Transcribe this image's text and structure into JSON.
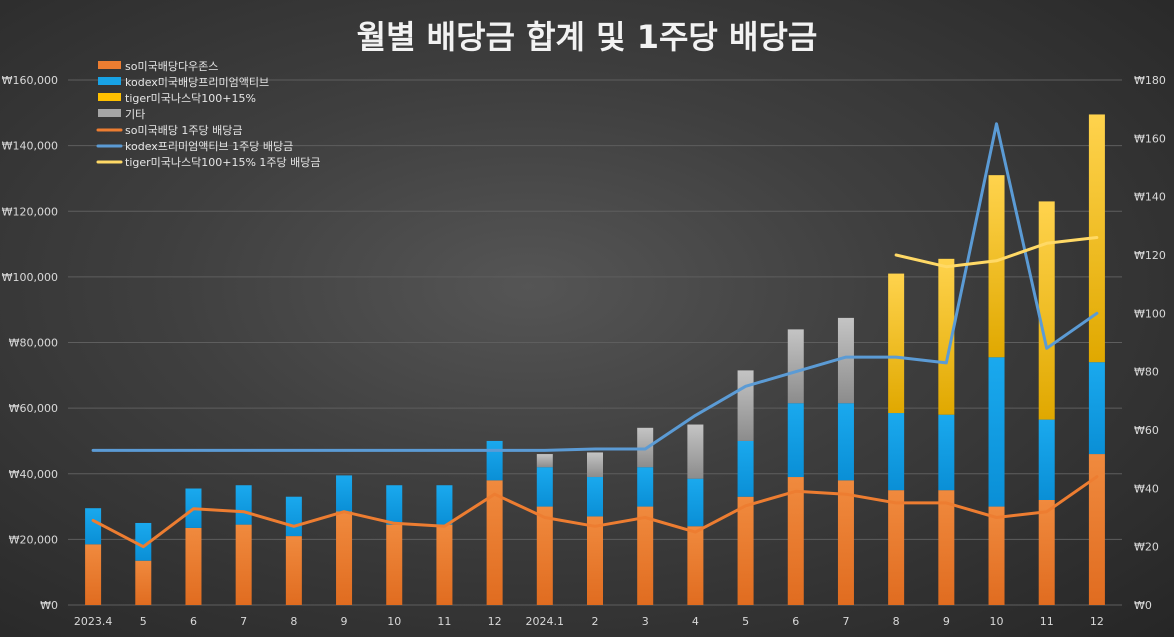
{
  "chart_data": {
    "type": "bar",
    "title": "월별 배당금 합계 및 1주당 배당금",
    "categories": [
      "2023.4",
      "5",
      "6",
      "7",
      "8",
      "9",
      "10",
      "11",
      "12",
      "2024.1",
      "2",
      "3",
      "4",
      "5",
      "6",
      "7",
      "8",
      "9",
      "10",
      "11",
      "12"
    ],
    "y_left": {
      "range": [
        0,
        160000
      ],
      "ticks": [
        0,
        20000,
        40000,
        60000,
        80000,
        100000,
        120000,
        140000,
        160000
      ],
      "tick_labels": [
        "₩0",
        "₩20,000",
        "₩40,000",
        "₩60,000",
        "₩80,000",
        "₩100,000",
        "₩120,000",
        "₩140,000",
        "₩160,000"
      ]
    },
    "y_right": {
      "range": [
        0,
        180
      ],
      "ticks": [
        0,
        20,
        40,
        60,
        80,
        100,
        120,
        140,
        160,
        180
      ],
      "tick_labels": [
        "₩0",
        "₩20",
        "₩40",
        "₩60",
        "₩80",
        "₩100",
        "₩120",
        "₩140",
        "₩160",
        "₩180"
      ]
    },
    "grid": true,
    "legend_position": "top-left",
    "bar_series": [
      {
        "name": "so미국배당다우존스",
        "color": "#ed7d31",
        "values": [
          18500,
          13500,
          23500,
          24500,
          21000,
          28500,
          24500,
          24500,
          38000,
          30000,
          27000,
          30000,
          24000,
          33000,
          39000,
          38000,
          35000,
          35000,
          30000,
          32000,
          46000
        ]
      },
      {
        "name": "kodex미국배당프리미엄액티브",
        "color": "#18a3e6",
        "values": [
          11000,
          11500,
          12000,
          12000,
          12000,
          11000,
          12000,
          12000,
          12000,
          12000,
          12000,
          12000,
          14500,
          17000,
          22500,
          23500,
          23500,
          23000,
          45500,
          24500,
          28000
        ]
      },
      {
        "name": "tiger미국나스닥100+15%",
        "color": "#ffc000",
        "values": [
          0,
          0,
          0,
          0,
          0,
          0,
          0,
          0,
          0,
          0,
          0,
          0,
          0,
          0,
          0,
          0,
          42500,
          47500,
          55500,
          66500,
          75500
        ]
      },
      {
        "name": "기타",
        "color": "#a6a6a6",
        "values": [
          0,
          0,
          0,
          0,
          0,
          0,
          0,
          0,
          0,
          4000,
          7500,
          12000,
          16500,
          21500,
          22500,
          26000,
          0,
          0,
          0,
          0,
          0
        ]
      }
    ],
    "line_series": [
      {
        "name": "so미국배당 1주당 배당금",
        "color": "#ed7d31",
        "axis": "right",
        "values": [
          29,
          20,
          33,
          32,
          27,
          32,
          28,
          27,
          38,
          30,
          27,
          30,
          25,
          34,
          39,
          38,
          35,
          35,
          30,
          32,
          44
        ]
      },
      {
        "name": "kodex프리미엄액티브 1주당 배당금",
        "color": "#5b9bd5",
        "axis": "right",
        "values": [
          53,
          53,
          53,
          53,
          53,
          53,
          53,
          53,
          53,
          53,
          53.5,
          53.5,
          65,
          75,
          80,
          85,
          85,
          83,
          165,
          88,
          100
        ]
      },
      {
        "name": "tiger미국나스닥100+15% 1주당 배당금",
        "color": "#ffd966",
        "axis": "right",
        "values": [
          null,
          null,
          null,
          null,
          null,
          null,
          null,
          null,
          null,
          null,
          null,
          null,
          null,
          null,
          null,
          null,
          120,
          116,
          118,
          124,
          126
        ]
      }
    ]
  }
}
